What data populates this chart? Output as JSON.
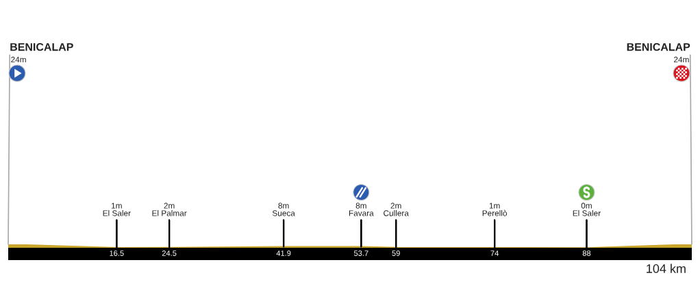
{
  "chart_data": {
    "type": "area",
    "x": [
      0,
      16.5,
      24.5,
      41.9,
      53.7,
      59,
      74,
      88,
      104
    ],
    "values": [
      24,
      1,
      2,
      8,
      8,
      2,
      1,
      0,
      24
    ],
    "color": "#c9a52c",
    "xlim": [
      0,
      104
    ],
    "xticks": [
      16.5,
      24.5,
      41.9,
      53.7,
      59,
      74,
      88
    ],
    "tick_labels": "x",
    "value_labels": [
      "24m",
      "1m",
      "2m",
      "8m",
      "8m",
      "2m",
      "1m",
      "0m",
      "24m"
    ],
    "annotations": [
      {
        "text": "BENICALAP",
        "x": 0,
        "y": 24
      },
      {
        "text": "El Saler",
        "x": 16.5,
        "y": 1
      },
      {
        "text": "El Palmar",
        "x": 24.5,
        "y": 2
      },
      {
        "text": "Sueca",
        "x": 41.9,
        "y": 8
      },
      {
        "text": "Favara",
        "x": 53.7,
        "y": 8
      },
      {
        "text": "Cullera",
        "x": 59,
        "y": 2
      },
      {
        "text": "Perellò",
        "x": 74,
        "y": 1
      },
      {
        "text": "El Saler",
        "x": 88,
        "y": 0
      },
      {
        "text": "BENICALAP",
        "x": 104,
        "y": 24
      },
      "104 km"
    ]
  }
}
